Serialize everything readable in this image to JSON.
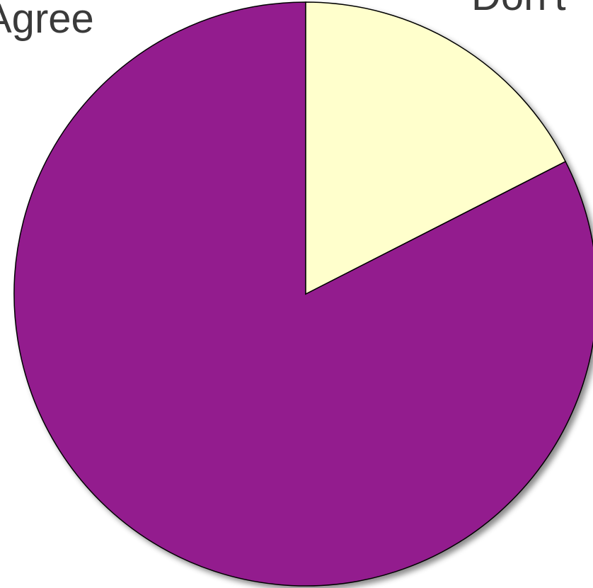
{
  "chart_data": {
    "type": "pie",
    "categories": [
      "Agree",
      "Don't"
    ],
    "values": [
      82.5,
      17.5
    ],
    "colors": [
      "#931f8e",
      "#ffffcc"
    ]
  }
}
